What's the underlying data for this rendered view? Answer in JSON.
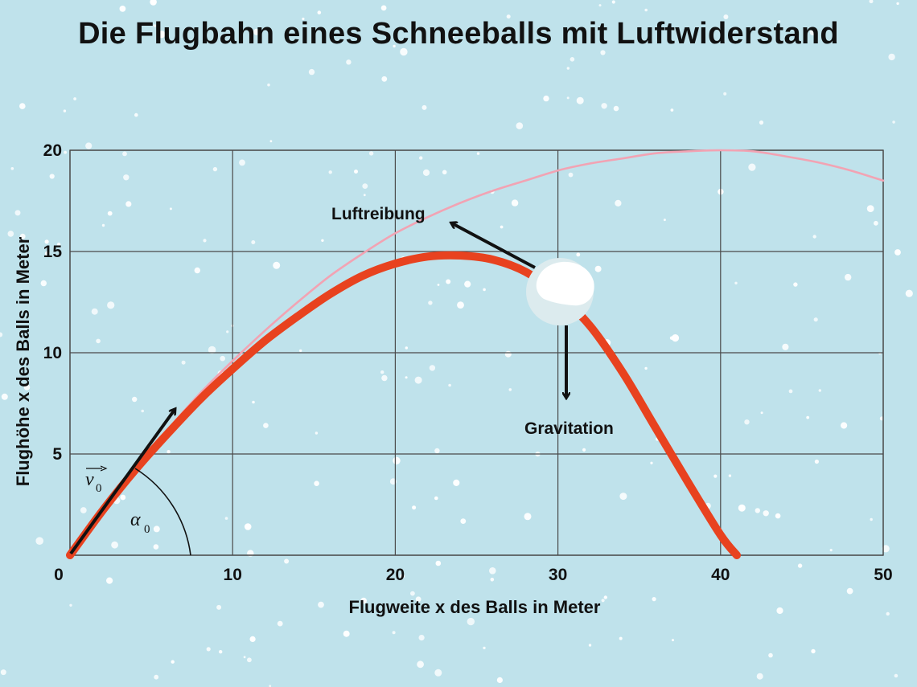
{
  "chart_data": {
    "type": "line",
    "title": "Die Flugbahn eines Schneeballs mit Luftwiderstand",
    "xlabel": "Flugweite x des Balls in Meter",
    "ylabel": "Flughöhe x des Balls in Meter",
    "xlim": [
      0,
      50
    ],
    "ylim": [
      0,
      20
    ],
    "x_ticks": [
      "0",
      "10",
      "20",
      "30",
      "40",
      "50"
    ],
    "y_ticks": [
      "5",
      "10",
      "15",
      "20"
    ],
    "grid": true,
    "series": [
      {
        "color": "#f2a3b3",
        "x": [
          0,
          2,
          4,
          6,
          8,
          10,
          12,
          14,
          16,
          18,
          20,
          22,
          24,
          26,
          28,
          30,
          32,
          34,
          36,
          38,
          40,
          42,
          44,
          46,
          48,
          50
        ],
        "y": [
          0,
          2.3,
          4.3,
          6.2,
          8.0,
          9.6,
          11.1,
          12.5,
          13.8,
          14.9,
          15.9,
          16.7,
          17.4,
          18.0,
          18.5,
          19.0,
          19.35,
          19.6,
          19.85,
          19.95,
          20.0,
          19.95,
          19.7,
          19.4,
          19.0,
          18.5
        ]
      },
      {
        "color": "#e8421f",
        "x": [
          0,
          2,
          4,
          6,
          8,
          10,
          12,
          14,
          16,
          18,
          20,
          22,
          24,
          26,
          28,
          30,
          32,
          34,
          36,
          38,
          40,
          41
        ],
        "y": [
          0,
          2.2,
          4.2,
          6.0,
          7.7,
          9.2,
          10.6,
          11.8,
          12.9,
          13.8,
          14.4,
          14.75,
          14.8,
          14.6,
          14.0,
          12.9,
          11.3,
          9.0,
          6.3,
          3.6,
          1.0,
          0
        ]
      }
    ],
    "annotations": {
      "force_drag": "Luftreibung",
      "force_gravity": "Gravitation",
      "velocity_symbol": "v",
      "velocity_subscript": "0",
      "angle_symbol": "α",
      "angle_subscript": "0"
    }
  },
  "colors": {
    "background": "#bfe2eb",
    "grid": "#4a4a4a",
    "ideal_path": "#f2a3b3",
    "real_path": "#e8421f",
    "snowball": "#ffffff",
    "arrow": "#111111"
  }
}
